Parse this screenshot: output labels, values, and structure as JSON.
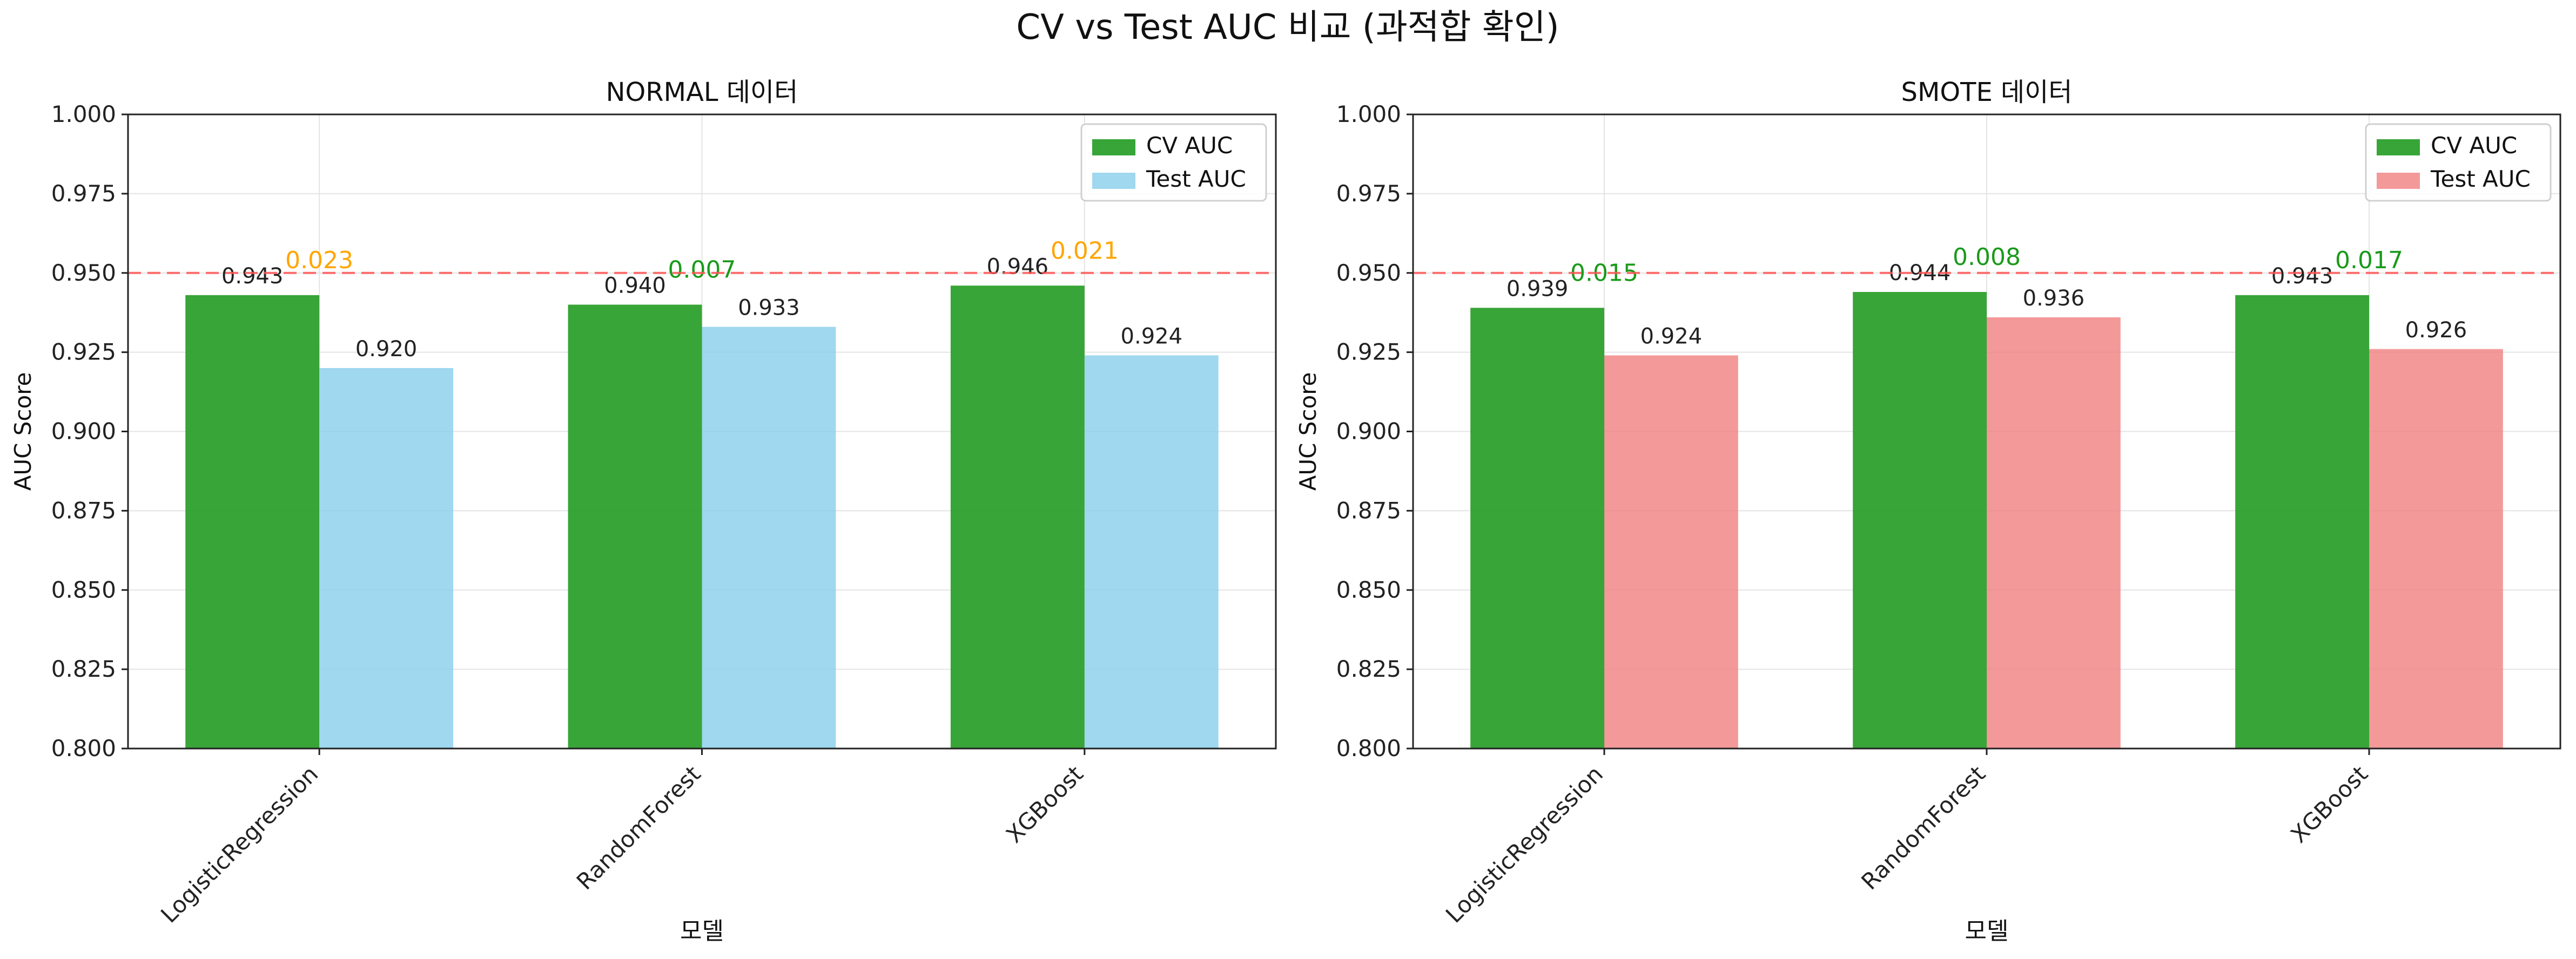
{
  "figure": {
    "title": "CV vs Test AUC 비교 (과적합 확인)"
  },
  "chart_data": [
    {
      "type": "bar",
      "title": "NORMAL 데이터",
      "xlabel": "모델",
      "ylabel": "AUC Score",
      "ylim": [
        0.8,
        1.0
      ],
      "yticks": [
        "0.800",
        "0.825",
        "0.850",
        "0.875",
        "0.900",
        "0.925",
        "0.950",
        "0.975",
        "1.000"
      ],
      "categories": [
        "LogisticRegression",
        "RandomForest",
        "XGBoost"
      ],
      "series": [
        {
          "name": "CV AUC",
          "values": [
            0.943,
            0.94,
            0.946
          ],
          "color": "#2ca02c",
          "labels": [
            "0.943",
            "0.940",
            "0.946"
          ]
        },
        {
          "name": "Test AUC",
          "values": [
            0.92,
            0.933,
            0.924
          ],
          "color": "#87ceeb",
          "labels": [
            "0.920",
            "0.933",
            "0.924"
          ]
        }
      ],
      "gap_labels": [
        "0.023",
        "0.007",
        "0.021"
      ],
      "gap_colors": [
        "#ffa500",
        "#1a9a1a",
        "#ffa500"
      ],
      "reference_line": {
        "value": 0.95,
        "color": "#ff5555",
        "style": "dashed"
      },
      "grid": true,
      "legend": "top-right"
    },
    {
      "type": "bar",
      "title": "SMOTE 데이터",
      "xlabel": "모델",
      "ylabel": "AUC Score",
      "ylim": [
        0.8,
        1.0
      ],
      "yticks": [
        "0.800",
        "0.825",
        "0.850",
        "0.875",
        "0.900",
        "0.925",
        "0.950",
        "0.975",
        "1.000"
      ],
      "categories": [
        "LogisticRegression",
        "RandomForest",
        "XGBoost"
      ],
      "series": [
        {
          "name": "CV AUC",
          "values": [
            0.939,
            0.944,
            0.943
          ],
          "color": "#2ca02c",
          "labels": [
            "0.939",
            "0.944",
            "0.943"
          ]
        },
        {
          "name": "Test AUC",
          "values": [
            0.924,
            0.936,
            0.926
          ],
          "color": "#f08080",
          "labels": [
            "0.924",
            "0.936",
            "0.926"
          ]
        }
      ],
      "gap_labels": [
        "0.015",
        "0.008",
        "0.017"
      ],
      "gap_colors": [
        "#1a9a1a",
        "#1a9a1a",
        "#1a9a1a"
      ],
      "reference_line": {
        "value": 0.95,
        "color": "#ff5555",
        "style": "dashed"
      },
      "grid": true,
      "legend": "top-right"
    }
  ]
}
